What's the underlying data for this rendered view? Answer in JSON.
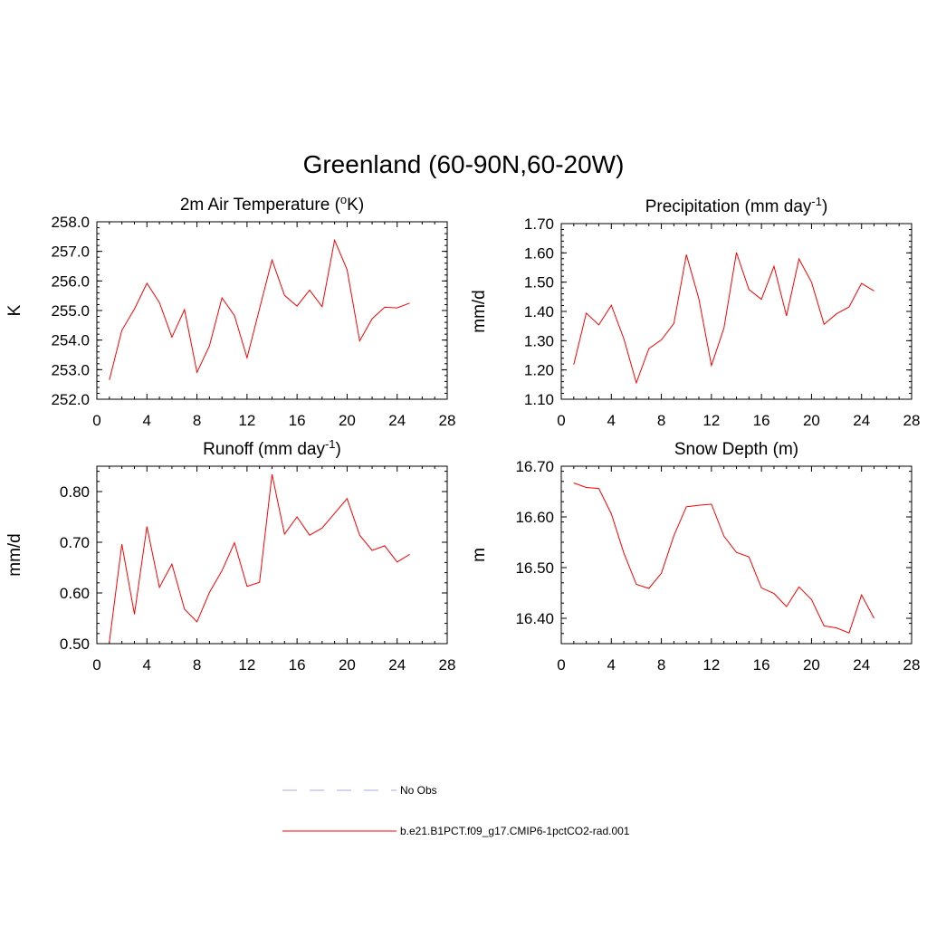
{
  "title": "Greenland (60-90N,60-20W)",
  "colors": {
    "model": "#ff0000",
    "obs": "#a8a8e8",
    "axis": "#000000"
  },
  "chart_data": [
    {
      "type": "line",
      "title": "2m Air Temperature (",
      "title_sup": "o",
      "title_after": "K)",
      "ylabel": "K",
      "xlim": [
        0,
        28
      ],
      "ylim": [
        252.0,
        258.0
      ],
      "xticks": [
        0,
        4,
        8,
        12,
        16,
        20,
        24,
        28
      ],
      "yticks": [
        "252.0",
        "253.0",
        "254.0",
        "255.0",
        "256.0",
        "257.0",
        "258.0"
      ],
      "series": [
        {
          "x": [
            1,
            2,
            3,
            4,
            5,
            6,
            7,
            8,
            9,
            10,
            11,
            12,
            13,
            14,
            15,
            16,
            17,
            18,
            19,
            20,
            21,
            22,
            23,
            24,
            25
          ],
          "values": [
            252.65,
            254.33,
            255.05,
            255.92,
            255.27,
            254.1,
            255.03,
            252.91,
            253.81,
            255.43,
            254.83,
            253.4,
            255.06,
            256.71,
            255.51,
            255.15,
            255.69,
            255.13,
            257.38,
            256.38,
            253.97,
            254.72,
            255.11,
            255.09,
            255.25
          ]
        }
      ]
    },
    {
      "type": "line",
      "title": "Precipitation (mm day",
      "title_sup": "-1",
      "title_after": ")",
      "ylabel": "mm/d",
      "xlim": [
        0,
        28
      ],
      "ylim": [
        1.1,
        1.7
      ],
      "xticks": [
        0,
        4,
        8,
        12,
        16,
        20,
        24,
        28
      ],
      "yticks": [
        "1.10",
        "1.20",
        "1.30",
        "1.40",
        "1.50",
        "1.60",
        "1.70"
      ],
      "series": [
        {
          "x": [
            1,
            2,
            3,
            4,
            5,
            6,
            7,
            8,
            9,
            10,
            11,
            12,
            13,
            14,
            15,
            16,
            17,
            18,
            19,
            20,
            21,
            22,
            23,
            24,
            25
          ],
          "values": [
            1.218,
            1.394,
            1.354,
            1.421,
            1.307,
            1.156,
            1.273,
            1.303,
            1.359,
            1.594,
            1.443,
            1.215,
            1.343,
            1.601,
            1.475,
            1.441,
            1.554,
            1.385,
            1.579,
            1.5,
            1.356,
            1.392,
            1.415,
            1.496,
            1.47
          ]
        }
      ]
    },
    {
      "type": "line",
      "title": "Runoff (mm day",
      "title_sup": "-1",
      "title_after": ")",
      "ylabel": "mm/d",
      "xlim": [
        0,
        28
      ],
      "ylim": [
        0.5,
        0.85
      ],
      "xticks": [
        0,
        4,
        8,
        12,
        16,
        20,
        24,
        28
      ],
      "yticks": [
        "0.50",
        "0.60",
        "0.70",
        "0.80"
      ],
      "series": [
        {
          "x": [
            1,
            2,
            3,
            4,
            5,
            6,
            7,
            8,
            9,
            10,
            11,
            12,
            13,
            14,
            15,
            16,
            17,
            18,
            19,
            20,
            21,
            22,
            23,
            24,
            25
          ],
          "values": [
            0.503,
            0.696,
            0.558,
            0.731,
            0.611,
            0.657,
            0.568,
            0.543,
            0.601,
            0.644,
            0.699,
            0.613,
            0.621,
            0.834,
            0.716,
            0.75,
            0.714,
            0.728,
            0.757,
            0.786,
            0.714,
            0.684,
            0.693,
            0.661,
            0.676
          ]
        }
      ]
    },
    {
      "type": "line",
      "title": "Snow Depth (m)",
      "title_sup": "",
      "title_after": "",
      "ylabel": "m",
      "xlim": [
        0,
        28
      ],
      "ylim": [
        16.35,
        16.7
      ],
      "xticks": [
        0,
        4,
        8,
        12,
        16,
        20,
        24,
        28
      ],
      "yticks": [
        "16.40",
        "16.50",
        "16.60",
        "16.70"
      ],
      "series": [
        {
          "x": [
            1,
            2,
            3,
            4,
            5,
            6,
            7,
            8,
            9,
            10,
            11,
            12,
            13,
            14,
            15,
            16,
            17,
            18,
            19,
            20,
            21,
            22,
            23,
            24,
            25
          ],
          "values": [
            16.667,
            16.658,
            16.656,
            16.606,
            16.529,
            16.467,
            16.459,
            16.489,
            16.563,
            16.62,
            16.623,
            16.625,
            16.562,
            16.53,
            16.521,
            16.46,
            16.449,
            16.423,
            16.462,
            16.437,
            16.385,
            16.381,
            16.371,
            16.446,
            16.4
          ]
        }
      ]
    }
  ],
  "legend": [
    {
      "label": "No Obs",
      "style": "dashed",
      "color": "#a8a8e8"
    },
    {
      "label": "b.e21.B1PCT.f09_g17.CMIP6-1pctCO2-rad.001",
      "style": "solid",
      "color": "#ff0000"
    }
  ]
}
